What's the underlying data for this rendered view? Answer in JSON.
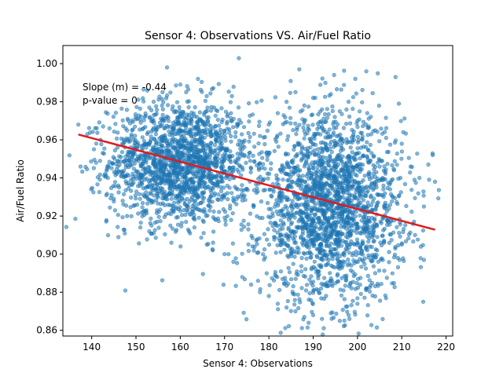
{
  "chart_data": {
    "type": "scatter",
    "title": "Sensor 4: Observations VS. Air/Fuel Ratio",
    "xlabel": "Sensor 4: Observations",
    "ylabel": "Air/Fuel Ratio",
    "xlim": [
      133.5,
      221.5
    ],
    "ylim": [
      0.857,
      1.0095
    ],
    "xticks": [
      140,
      150,
      160,
      170,
      180,
      190,
      200,
      210,
      220
    ],
    "yticks": [
      0.86,
      0.88,
      0.9,
      0.92,
      0.94,
      0.96,
      0.98,
      1.0
    ],
    "xtick_labels": [
      "140",
      "150",
      "160",
      "170",
      "180",
      "190",
      "200",
      "210",
      "220"
    ],
    "ytick_labels": [
      "0.86",
      "0.88",
      "0.90",
      "0.92",
      "0.94",
      "0.96",
      "0.98",
      "1.00"
    ],
    "grid": false,
    "annotations": [
      "Slope (m) = -0.44",
      "p-value = 0"
    ],
    "regression_line": {
      "x": [
        137,
        217.5
      ],
      "y": [
        0.9628,
        0.9128
      ],
      "color": "#e31a1c"
    },
    "point_color": "#1f77b4",
    "clusters": [
      {
        "x_center": 160,
        "y_center": 0.948,
        "x_spread": 8,
        "y_spread": 0.016
      },
      {
        "x_center": 194,
        "y_center": 0.925,
        "x_spread": 8,
        "y_spread": 0.024
      }
    ],
    "sample_points": [
      {
        "x": 137,
        "y": 0.968
      },
      {
        "x": 137.5,
        "y": 0.946
      },
      {
        "x": 139,
        "y": 0.963
      },
      {
        "x": 140.5,
        "y": 0.955
      },
      {
        "x": 141,
        "y": 0.948
      },
      {
        "x": 142,
        "y": 0.96
      },
      {
        "x": 143,
        "y": 0.942
      },
      {
        "x": 144.5,
        "y": 0.931
      },
      {
        "x": 146,
        "y": 0.936
      },
      {
        "x": 147,
        "y": 0.928
      },
      {
        "x": 148,
        "y": 0.965
      },
      {
        "x": 148,
        "y": 0.92
      },
      {
        "x": 150,
        "y": 0.955
      },
      {
        "x": 151,
        "y": 0.914
      },
      {
        "x": 152,
        "y": 0.972
      },
      {
        "x": 153,
        "y": 0.912
      },
      {
        "x": 154,
        "y": 0.98
      },
      {
        "x": 155,
        "y": 0.94
      },
      {
        "x": 156,
        "y": 0.985
      },
      {
        "x": 157,
        "y": 0.998
      },
      {
        "x": 158,
        "y": 0.96
      },
      {
        "x": 158,
        "y": 0.906
      },
      {
        "x": 160,
        "y": 0.989
      },
      {
        "x": 160,
        "y": 0.944
      },
      {
        "x": 162,
        "y": 0.97
      },
      {
        "x": 162,
        "y": 0.912
      },
      {
        "x": 164,
        "y": 0.992
      },
      {
        "x": 164,
        "y": 0.93
      },
      {
        "x": 166,
        "y": 0.975
      },
      {
        "x": 166,
        "y": 0.905
      },
      {
        "x": 168,
        "y": 0.96
      },
      {
        "x": 168,
        "y": 0.918
      },
      {
        "x": 170,
        "y": 0.95
      },
      {
        "x": 170,
        "y": 0.9
      },
      {
        "x": 172,
        "y": 0.94
      },
      {
        "x": 172,
        "y": 0.896
      },
      {
        "x": 174,
        "y": 0.955
      },
      {
        "x": 174,
        "y": 0.888
      },
      {
        "x": 176,
        "y": 0.945
      },
      {
        "x": 176,
        "y": 0.884
      },
      {
        "x": 178,
        "y": 0.962
      },
      {
        "x": 178,
        "y": 0.88
      },
      {
        "x": 180,
        "y": 0.968
      },
      {
        "x": 180,
        "y": 0.878
      },
      {
        "x": 182,
        "y": 0.974
      },
      {
        "x": 182,
        "y": 0.874
      },
      {
        "x": 184,
        "y": 0.98
      },
      {
        "x": 184,
        "y": 0.872
      },
      {
        "x": 186,
        "y": 0.985
      },
      {
        "x": 186,
        "y": 0.87
      },
      {
        "x": 188,
        "y": 0.978
      },
      {
        "x": 188,
        "y": 0.867
      },
      {
        "x": 190,
        "y": 0.982
      },
      {
        "x": 190,
        "y": 0.868
      },
      {
        "x": 192,
        "y": 0.976
      },
      {
        "x": 192,
        "y": 0.866
      },
      {
        "x": 194,
        "y": 0.984
      },
      {
        "x": 194,
        "y": 0.869
      },
      {
        "x": 196,
        "y": 0.975
      },
      {
        "x": 196,
        "y": 0.865
      },
      {
        "x": 198,
        "y": 0.98
      },
      {
        "x": 198,
        "y": 0.868
      },
      {
        "x": 200,
        "y": 0.97
      },
      {
        "x": 200,
        "y": 0.874
      },
      {
        "x": 202,
        "y": 0.996
      },
      {
        "x": 202,
        "y": 0.882
      },
      {
        "x": 204,
        "y": 0.965
      },
      {
        "x": 204,
        "y": 0.89
      },
      {
        "x": 205,
        "y": 0.946
      },
      {
        "x": 206,
        "y": 0.906
      },
      {
        "x": 208,
        "y": 0.93
      },
      {
        "x": 210,
        "y": 0.958
      },
      {
        "x": 210,
        "y": 0.905
      },
      {
        "x": 212,
        "y": 0.946
      },
      {
        "x": 213,
        "y": 0.91
      },
      {
        "x": 214,
        "y": 0.94
      },
      {
        "x": 215,
        "y": 0.925
      },
      {
        "x": 215,
        "y": 0.897
      },
      {
        "x": 216,
        "y": 0.947
      },
      {
        "x": 217,
        "y": 0.952
      },
      {
        "x": 217.5,
        "y": 0.938
      }
    ]
  }
}
